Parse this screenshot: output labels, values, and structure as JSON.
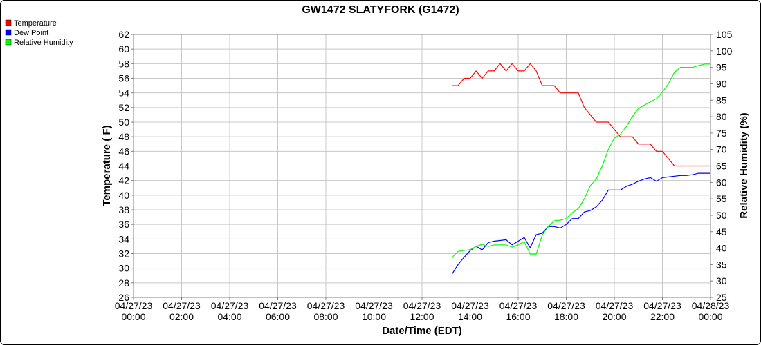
{
  "chart_data": {
    "type": "line",
    "title": "GW1472 SLATYFORK (G1472)",
    "xlabel": "Date/Time (EDT)",
    "ylabel": "Temperature ( F)",
    "y2label": "Relative Humidity (%)",
    "grid": true,
    "legend": "top-left",
    "x": [
      "04/27/23 13:15",
      "04/27/23 13:30",
      "04/27/23 13:45",
      "04/27/23 14:00",
      "04/27/23 14:15",
      "04/27/23 14:30",
      "04/27/23 14:45",
      "04/27/23 15:00",
      "04/27/23 15:15",
      "04/27/23 15:30",
      "04/27/23 15:45",
      "04/27/23 16:00",
      "04/27/23 16:15",
      "04/27/23 16:30",
      "04/27/23 16:45",
      "04/27/23 17:00",
      "04/27/23 17:15",
      "04/27/23 17:30",
      "04/27/23 17:45",
      "04/27/23 18:00",
      "04/27/23 18:15",
      "04/27/23 18:30",
      "04/27/23 18:45",
      "04/27/23 19:00",
      "04/27/23 19:15",
      "04/27/23 19:30",
      "04/27/23 19:45",
      "04/27/23 20:00",
      "04/27/23 20:15",
      "04/27/23 20:30",
      "04/27/23 20:45",
      "04/27/23 21:00",
      "04/27/23 21:15",
      "04/27/23 21:30",
      "04/27/23 21:45",
      "04/27/23 22:00",
      "04/27/23 22:15",
      "04/27/23 22:30",
      "04/27/23 22:45",
      "04/27/23 23:00",
      "04/27/23 23:15",
      "04/27/23 23:30",
      "04/27/23 23:45",
      "04/28/23 00:00"
    ],
    "series": [
      {
        "name": "Temperature",
        "color": "#ff0000",
        "axis": "y",
        "values": [
          55,
          55,
          56,
          56,
          57,
          56,
          57,
          57,
          58,
          57,
          58,
          57,
          57,
          58,
          57,
          55,
          55,
          55,
          54,
          54,
          54,
          54,
          52,
          51,
          50,
          50,
          50,
          49,
          48,
          48,
          48,
          47,
          47,
          47,
          46,
          46,
          45,
          44,
          44,
          44,
          44,
          44,
          44,
          44
        ]
      },
      {
        "name": "Dew Point",
        "color": "#0000ff",
        "axis": "y",
        "values": [
          29.2,
          30.5,
          31.5,
          32.4,
          33,
          32.5,
          33.5,
          33.7,
          33.8,
          33.9,
          33.2,
          33.7,
          34.2,
          32.8,
          34.6,
          34.8,
          35.7,
          35.7,
          35.5,
          36,
          36.8,
          36.8,
          37.7,
          37.9,
          38.4,
          39.3,
          40.7,
          40.7,
          40.7,
          41.2,
          41.5,
          41.9,
          42.2,
          42.4,
          41.9,
          42.4,
          42.5,
          42.6,
          42.7,
          42.7,
          42.8,
          43,
          43,
          43
        ]
      },
      {
        "name": "Relative Humidity",
        "color": "#00ff00",
        "axis": "y2",
        "values": [
          37.2,
          39,
          39.3,
          39.5,
          40.5,
          41.2,
          40.5,
          41,
          41,
          41,
          40.3,
          41,
          42,
          38.2,
          38.2,
          44,
          46.5,
          48.3,
          48.5,
          49,
          50.8,
          52,
          55,
          59,
          61,
          65,
          70,
          73.5,
          74.6,
          77,
          80,
          82.5,
          83.5,
          84.5,
          85.5,
          87.5,
          90,
          93.5,
          95,
          95,
          95,
          95.5,
          96,
          96
        ]
      }
    ],
    "xlim": [
      "04/27/23 00:00",
      "04/28/23 00:00"
    ],
    "xticks": [
      {
        "value": "04/27/23 00:00",
        "label": [
          "04/27/23",
          "00:00"
        ]
      },
      {
        "value": "04/27/23 02:00",
        "label": [
          "04/27/23",
          "02:00"
        ]
      },
      {
        "value": "04/27/23 04:00",
        "label": [
          "04/27/23",
          "04:00"
        ]
      },
      {
        "value": "04/27/23 06:00",
        "label": [
          "04/27/23",
          "06:00"
        ]
      },
      {
        "value": "04/27/23 08:00",
        "label": [
          "04/27/23",
          "08:00"
        ]
      },
      {
        "value": "04/27/23 10:00",
        "label": [
          "04/27/23",
          "10:00"
        ]
      },
      {
        "value": "04/27/23 12:00",
        "label": [
          "04/27/23",
          "12:00"
        ]
      },
      {
        "value": "04/27/23 14:00",
        "label": [
          "04/27/23",
          "14:00"
        ]
      },
      {
        "value": "04/27/23 16:00",
        "label": [
          "04/27/23",
          "16:00"
        ]
      },
      {
        "value": "04/27/23 18:00",
        "label": [
          "04/27/23",
          "18:00"
        ]
      },
      {
        "value": "04/27/23 20:00",
        "label": [
          "04/27/23",
          "20:00"
        ]
      },
      {
        "value": "04/27/23 22:00",
        "label": [
          "04/27/23",
          "22:00"
        ]
      },
      {
        "value": "04/28/23 00:00",
        "label": [
          "04/28/23",
          "00:00"
        ]
      }
    ],
    "ylim": [
      26,
      62
    ],
    "yticks": [
      26,
      28,
      30,
      32,
      34,
      36,
      38,
      40,
      42,
      44,
      46,
      48,
      50,
      52,
      54,
      56,
      58,
      60,
      62
    ],
    "y2lim": [
      25,
      105
    ],
    "y2ticks": [
      25,
      30,
      35,
      40,
      45,
      50,
      55,
      60,
      65,
      70,
      75,
      80,
      85,
      90,
      95,
      100,
      105
    ]
  }
}
